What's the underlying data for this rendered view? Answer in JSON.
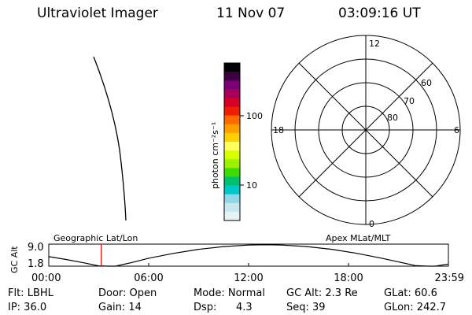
{
  "header": {
    "instrument": "Ultraviolet Imager",
    "date": "11 Nov 07",
    "time": "03:09:16 UT"
  },
  "colorbar": {
    "unit_label": "photon cm⁻²s⁻¹",
    "ticks": [
      "100",
      "10"
    ],
    "colors": [
      "#000000",
      "#3a0040",
      "#7a0078",
      "#a8005a",
      "#d40026",
      "#f01e00",
      "#ff6a00",
      "#ff9e00",
      "#ffd000",
      "#ffff60",
      "#d8ff00",
      "#9cf000",
      "#3cdc00",
      "#00c070",
      "#00c8c8",
      "#90d8e8",
      "#c8e8f0",
      "#e6f2f6"
    ]
  },
  "polar": {
    "mlt_labels": {
      "top": "12",
      "left": "18",
      "right": "6",
      "bottom": "0"
    },
    "lat_labels": [
      "60",
      "70",
      "80"
    ]
  },
  "timeline": {
    "ylabel": "GC Alt",
    "yticks": [
      "9.0",
      "1.8"
    ],
    "left_caption": "Geographic Lat/Lon",
    "right_caption": "Apex MLat/MLT",
    "xticks": [
      "00:00",
      "06:00",
      "12:00",
      "18:00",
      "23:59"
    ]
  },
  "chart_data": {
    "type": "line",
    "title": "",
    "xlabel": "",
    "ylabel": "GC Alt",
    "xlim": [
      0,
      24
    ],
    "ylim": [
      1.8,
      9.0
    ],
    "series": [
      {
        "x": [
          0.0,
          1.0,
          2.0,
          3.0,
          3.6,
          4.0,
          5.0,
          6.0,
          7.5,
          9.0,
          10.5,
          12.0,
          13.0,
          14.0,
          15.5,
          17.0,
          18.5,
          20.0,
          21.0,
          22.0,
          22.8,
          23.2,
          23.99
        ],
        "values": [
          4.9,
          4.0,
          3.0,
          1.9,
          1.3,
          1.7,
          3.0,
          4.4,
          6.0,
          7.3,
          8.2,
          8.7,
          8.8,
          8.7,
          8.2,
          7.3,
          6.0,
          4.4,
          3.2,
          2.0,
          1.3,
          1.7,
          2.5
        ]
      }
    ],
    "marker_time": 3.15
  },
  "status": {
    "flt": "Flt: LBHL",
    "door": "Door: Open",
    "mode": "Mode: Normal",
    "gc_alt": "GC Alt: 2.3 Re",
    "glat": "GLat: 60.6",
    "ip": "IP: 36.0",
    "gain": "Gain: 14",
    "dsp_label": "Dsp:",
    "dsp_value": "4.3",
    "seq": "Seq: 39",
    "glon": "GLon: 242.7"
  }
}
